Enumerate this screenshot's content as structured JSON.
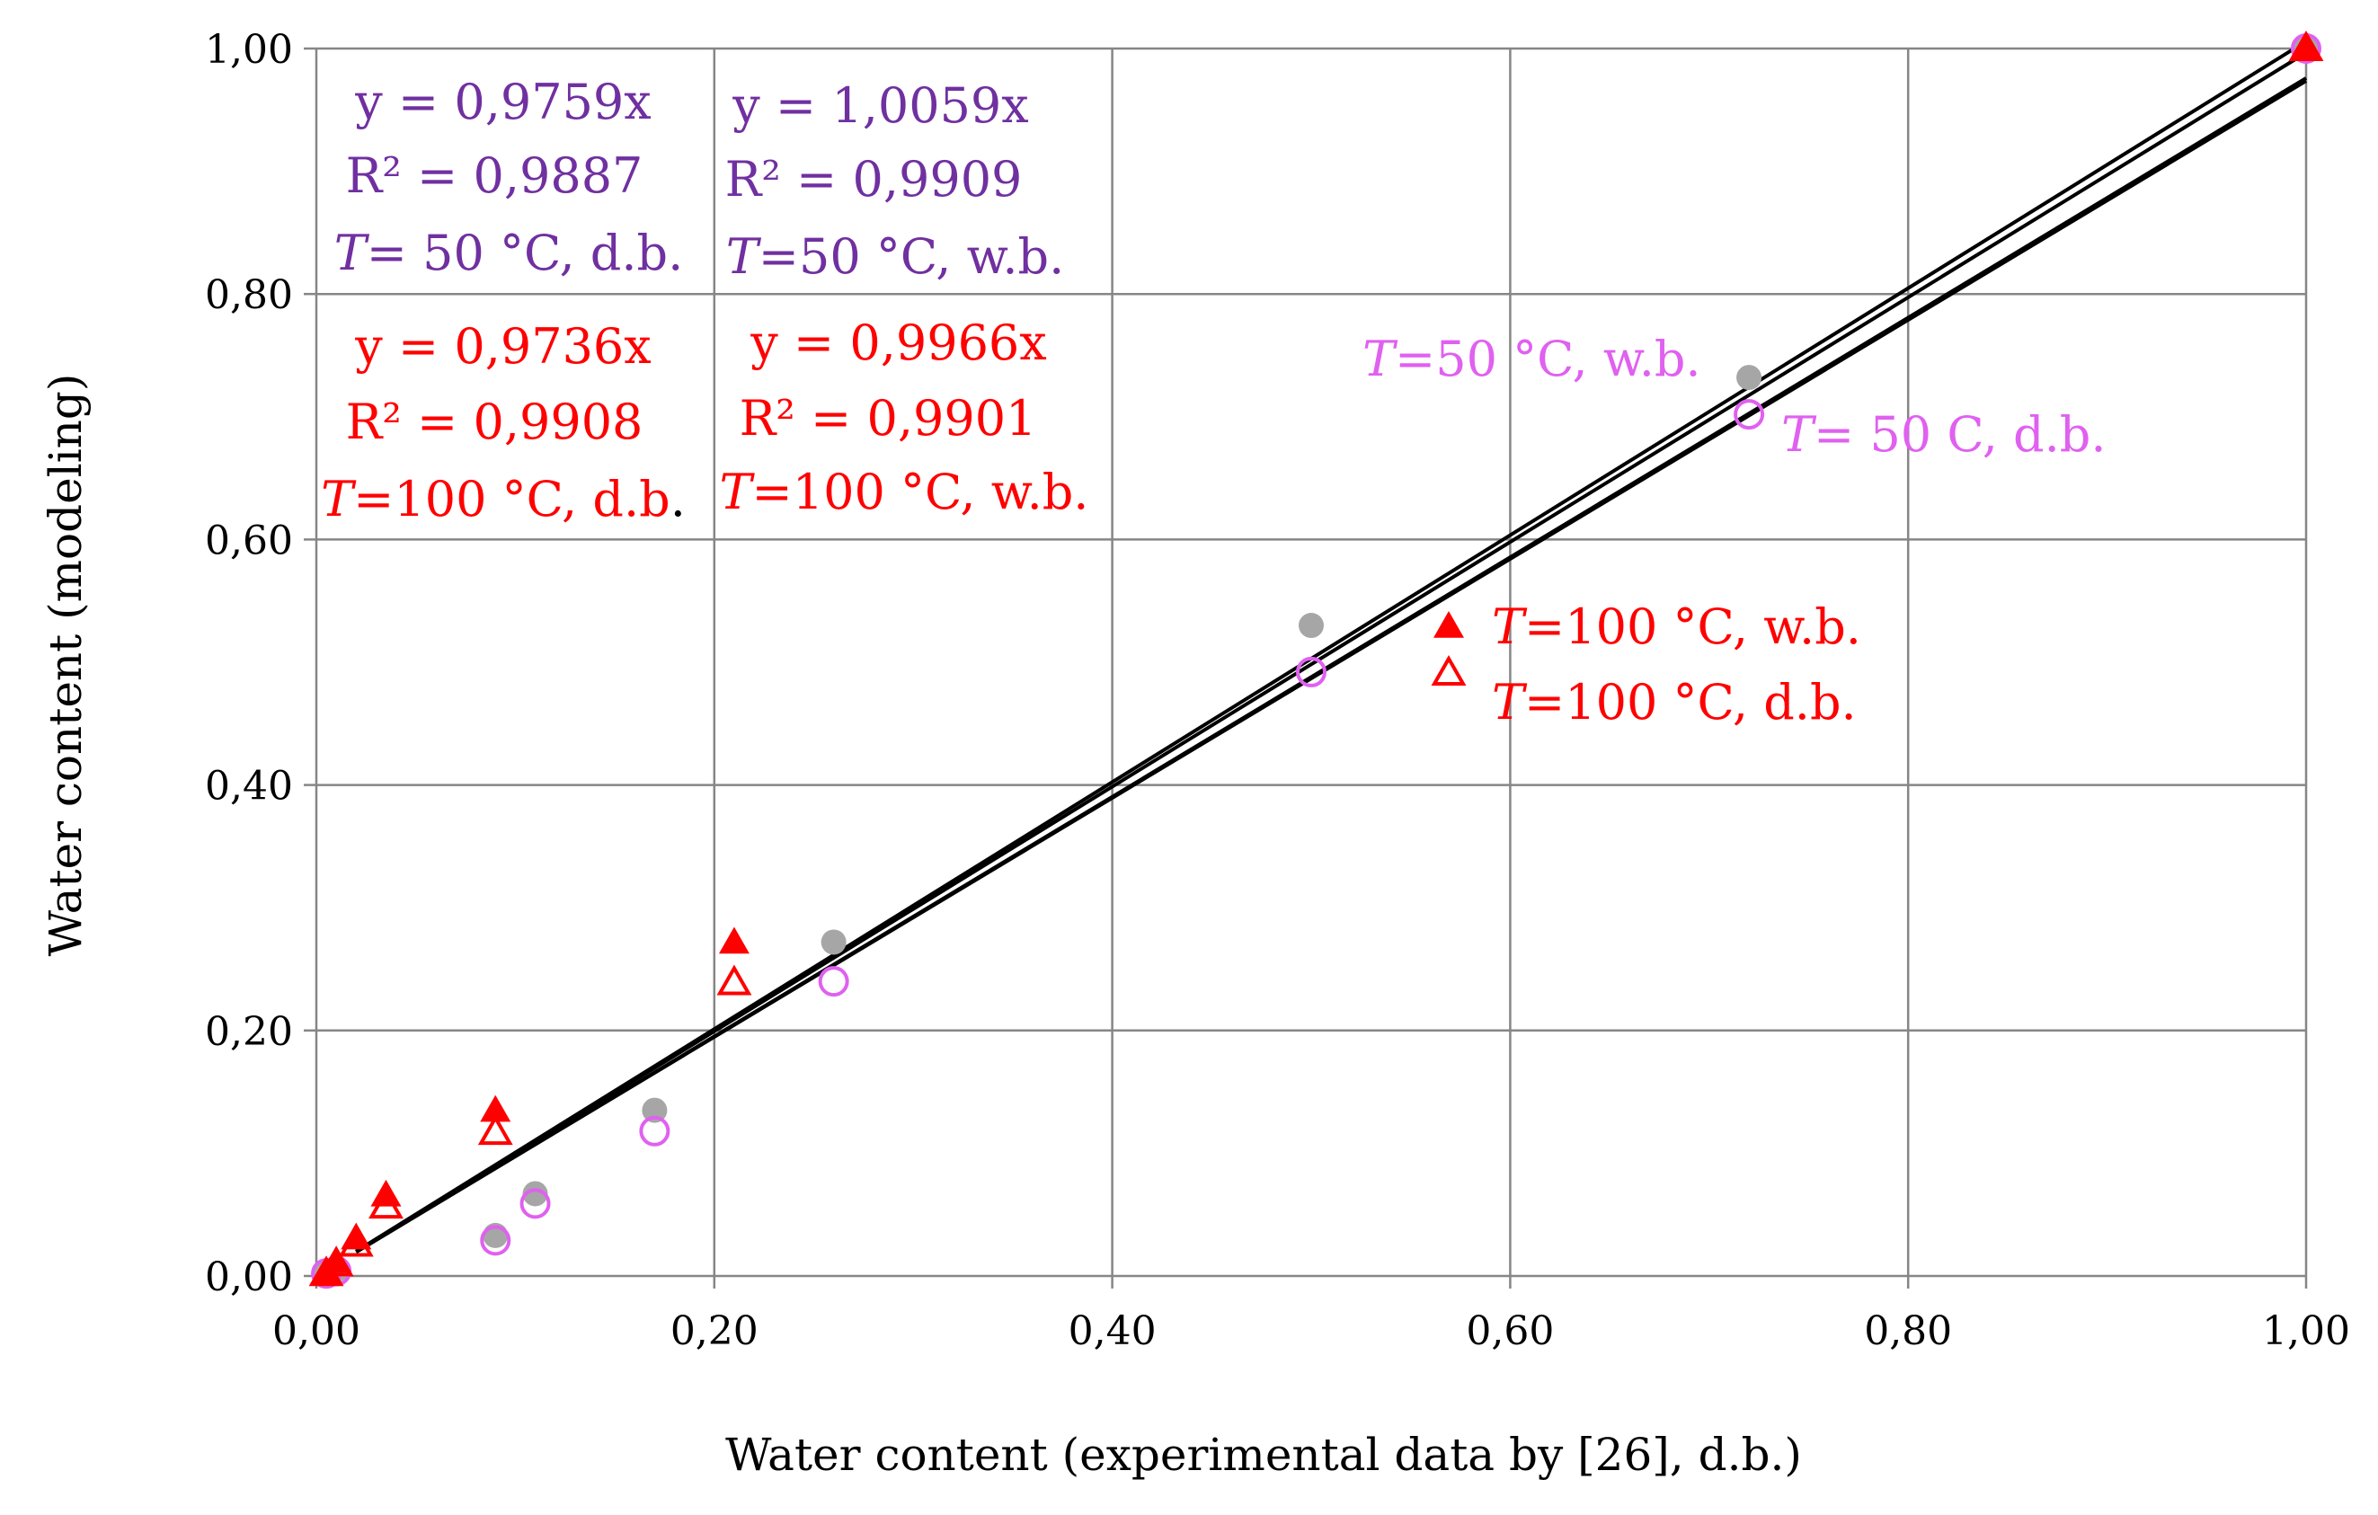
{
  "chart_data": {
    "type": "scatter",
    "title": "",
    "xlabel": "Water content (experimental data by [26], d.b.)",
    "ylabel": "Water content (modeling)",
    "xlim": [
      0,
      1
    ],
    "ylim": [
      0,
      1
    ],
    "grid": true,
    "x_ticks": [
      "0,00",
      "0,20",
      "0,40",
      "0,60",
      "0,80",
      "1,00"
    ],
    "y_ticks": [
      "0,00",
      "0,20",
      "0,40",
      "0,60",
      "0,80",
      "1,00"
    ],
    "colors": {
      "purple": "#7030A0",
      "red": "#FF0000",
      "gray": "#A6A6A6",
      "violet": "#E060F0",
      "grid": "#868686",
      "line": "#000000"
    },
    "series": [
      {
        "name": "T=50 °C, w.b.",
        "marker": "filled-circle",
        "color": "#A6A6A6",
        "x": [
          0.005,
          0.01,
          0.09,
          0.11,
          0.17,
          0.26,
          0.5,
          0.72,
          1.0
        ],
        "y": [
          0.003,
          0.005,
          0.033,
          0.067,
          0.135,
          0.272,
          0.53,
          0.732,
          1.0
        ]
      },
      {
        "name": "T= 50 C, d.b.",
        "marker": "open-circle",
        "color": "#E060F0",
        "x": [
          0.005,
          0.01,
          0.09,
          0.11,
          0.17,
          0.26,
          0.5,
          0.72,
          1.0
        ],
        "y": [
          0.002,
          0.004,
          0.029,
          0.059,
          0.118,
          0.24,
          0.492,
          0.702,
          1.0
        ]
      },
      {
        "name": "T=100 °C, w.b.",
        "marker": "filled-triangle",
        "color": "#FF0000",
        "x": [
          0.005,
          0.01,
          0.02,
          0.035,
          0.09,
          0.21,
          1.0
        ],
        "y": [
          0.003,
          0.012,
          0.031,
          0.066,
          0.135,
          0.272,
          1.0
        ]
      },
      {
        "name": "T=100 °C, d.b.",
        "marker": "open-triangle",
        "color": "#FF0000",
        "x": [
          0.005,
          0.01,
          0.02,
          0.035,
          0.09,
          0.21,
          1.0
        ],
        "y": [
          0.002,
          0.01,
          0.026,
          0.057,
          0.117,
          0.239,
          1.0
        ]
      }
    ],
    "trendlines": [
      {
        "slope": 0.9759,
        "intercept": 0
      },
      {
        "slope": 1.0059,
        "intercept": 0
      },
      {
        "slope": 0.9736,
        "intercept": 0
      },
      {
        "slope": 0.9966,
        "intercept": 0
      }
    ],
    "annotations": {
      "d50": {
        "eq": "y = 0,9759x",
        "r2": "R² = 0,9887",
        "t_italic": "T",
        "t_rest": "= 50 °C, d.b."
      },
      "w50": {
        "eq": "y = 1,0059x",
        "r2": "R² = 0,9909",
        "t_italic": "T",
        "t_rest": "=50 °C, w.b."
      },
      "d100": {
        "eq": "y = 0,9736x",
        "r2": "R² = 0,9908",
        "t_italic": "T",
        "t_rest": "=100 °C, d.b",
        "t_end": "."
      },
      "w100": {
        "eq": "y = 0,9966x",
        "r2": "R² = 0,9901",
        "t_italic": "T",
        "t_rest": "=100 °C, w.b."
      }
    },
    "legend_labels": {
      "w50": {
        "italic": "T",
        "rest": "=50 °C, w.b."
      },
      "d50": {
        "italic": "T",
        "rest": "= 50 C, d.b."
      },
      "w100": {
        "italic": "T",
        "rest": "=100 °C, w.b."
      },
      "d100": {
        "italic": "T",
        "rest": "=100 °C, d.b."
      }
    }
  }
}
